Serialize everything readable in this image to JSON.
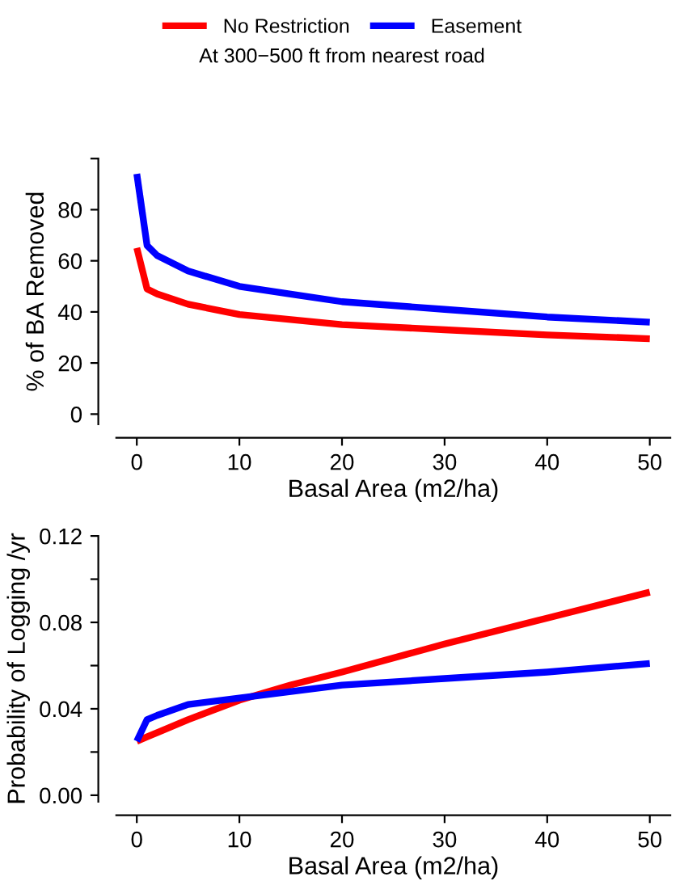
{
  "chart_data": [
    {
      "type": "line",
      "title": "At 300−500 ft from nearest road",
      "xlabel": "Basal Area (m2/ha)",
      "ylabel": "% of BA Removed",
      "legend": "top",
      "x": [
        0,
        1,
        2,
        5,
        10,
        15,
        20,
        30,
        40,
        50
      ],
      "series": [
        {
          "name": "No Restriction",
          "color": "#ff0000",
          "values": [
            65,
            49,
            47,
            43,
            39,
            37,
            35,
            33,
            31,
            29.5
          ]
        },
        {
          "name": "Easement",
          "color": "#0000ff",
          "values": [
            94,
            66,
            62,
            56,
            50,
            47,
            44,
            41,
            38,
            36
          ]
        }
      ],
      "xlim": [
        -2,
        52
      ],
      "ylim": [
        -4,
        100
      ],
      "xticks": [
        0,
        10,
        20,
        30,
        40,
        50
      ],
      "yticks": [
        0,
        20,
        40,
        60,
        80,
        {
          "value": 100,
          "label": null
        }
      ],
      "grid": false,
      "line_style": "solid"
    },
    {
      "type": "line",
      "xlabel": "Basal Area (m2/ha)",
      "ylabel": "Probability of Logging /yr",
      "x": [
        0,
        1,
        2,
        5,
        10,
        15,
        20,
        30,
        40,
        50
      ],
      "series": [
        {
          "color": "#ff0000",
          "values": [
            0.025,
            0.027,
            0.029,
            0.035,
            0.044,
            0.051,
            0.057,
            0.07,
            0.082,
            0.094
          ]
        },
        {
          "color": "#0000ff",
          "values": [
            0.025,
            0.035,
            0.037,
            0.042,
            0.045,
            0.048,
            0.051,
            0.054,
            0.057,
            0.061
          ]
        }
      ],
      "xlim": [
        -2,
        52
      ],
      "ylim": [
        -0.003,
        0.12
      ],
      "xticks": [
        0,
        10,
        20,
        30,
        40,
        50
      ],
      "yticks": [
        {
          "value": 0,
          "label": "0.00"
        },
        {
          "value": 0.02,
          "label": null
        },
        {
          "value": 0.04,
          "label": "0.04"
        },
        {
          "value": 0.06,
          "label": null
        },
        {
          "value": 0.08,
          "label": "0.08"
        },
        {
          "value": 0.1,
          "label": null
        },
        {
          "value": 0.12,
          "label": "0.12"
        }
      ],
      "grid": false,
      "line_style": "solid"
    }
  ]
}
